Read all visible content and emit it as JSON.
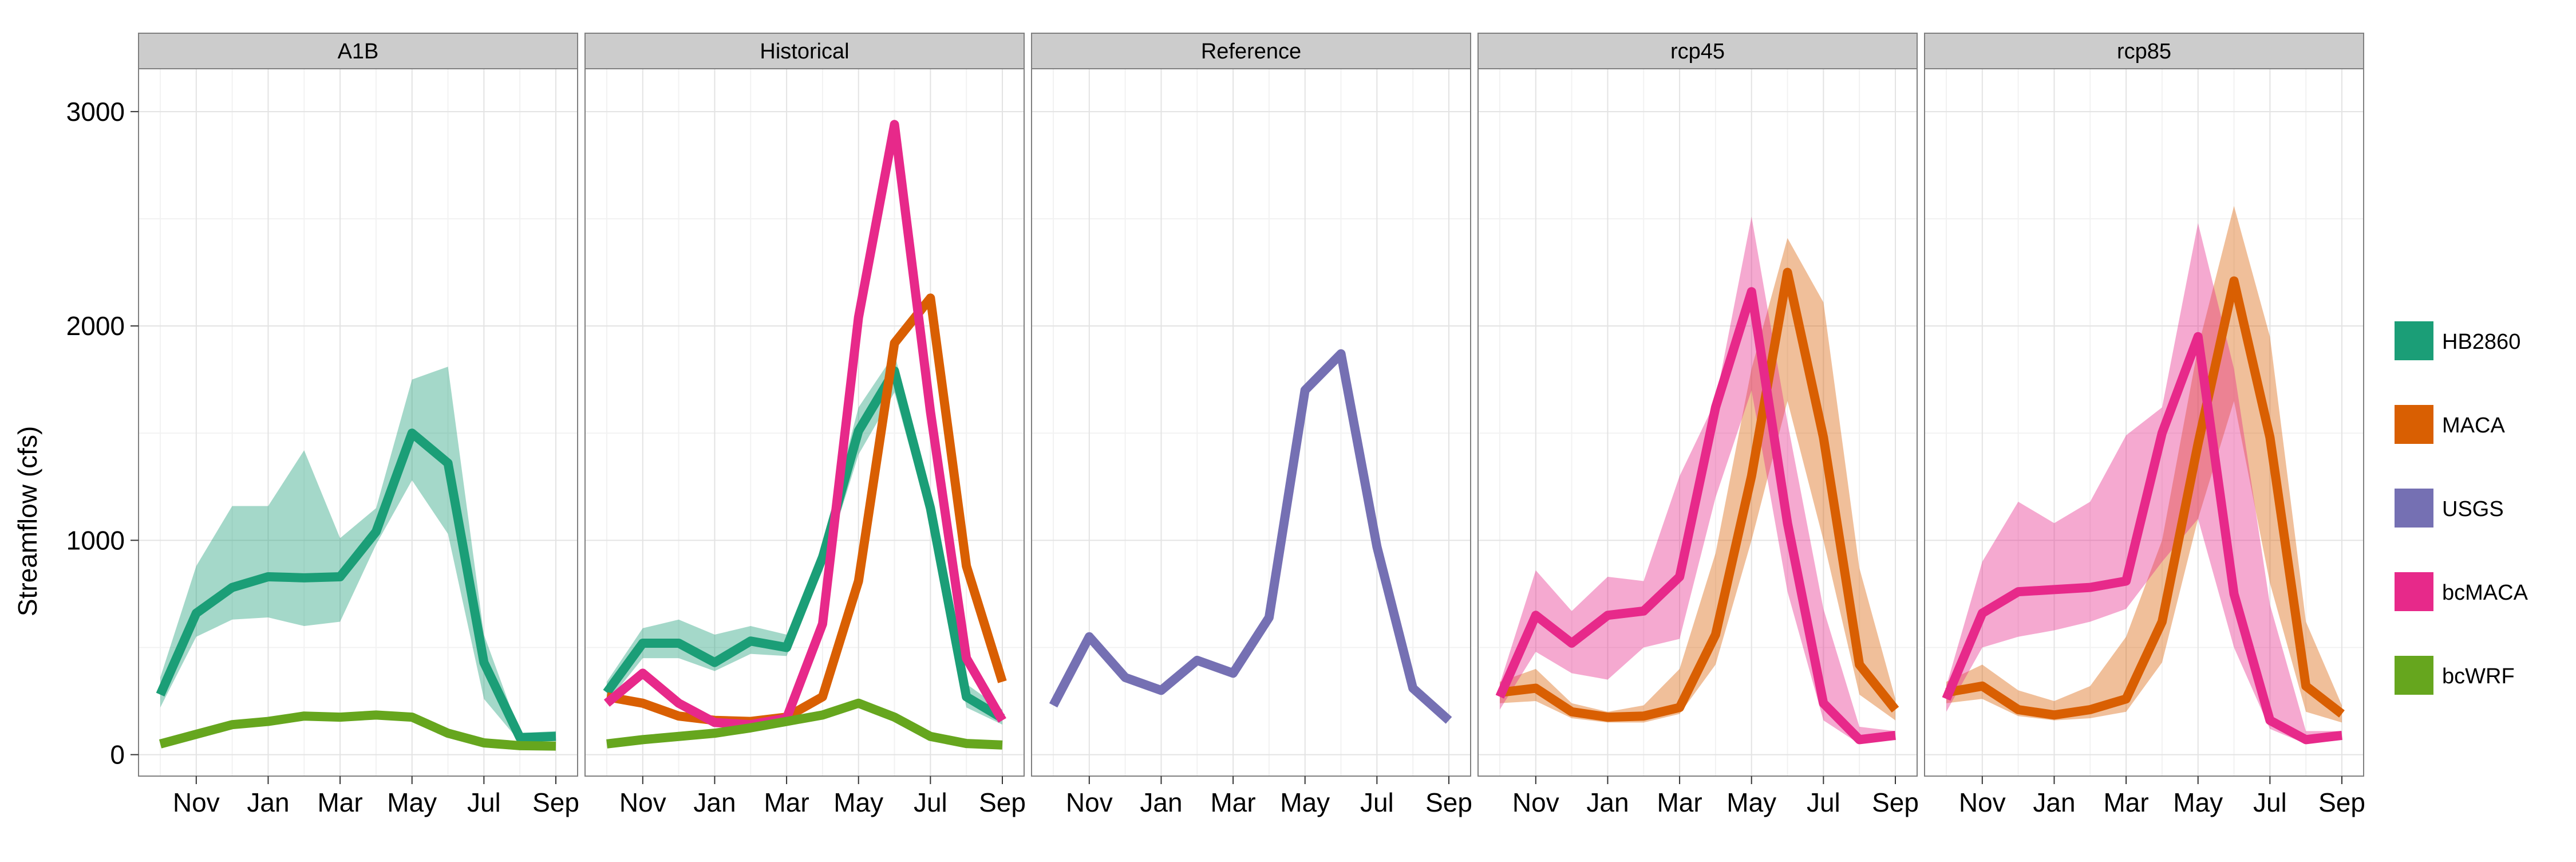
{
  "chart_data": {
    "type": "line",
    "ylabel": "Streamflow (cfs)",
    "xlabel": "",
    "ylim": [
      -100,
      3200
    ],
    "y_ticks": [
      0,
      1000,
      2000,
      3000
    ],
    "x_tick_labels": [
      "Nov",
      "Jan",
      "Mar",
      "May",
      "Jul",
      "Sep"
    ],
    "x_tick_months": [
      2,
      4,
      6,
      8,
      10,
      12
    ],
    "x_months": [
      1,
      2,
      3,
      4,
      5,
      6,
      7,
      8,
      9,
      10,
      11,
      12
    ],
    "legend_position": "right",
    "legend": [
      {
        "name": "HB2860",
        "color": "#1b9e77"
      },
      {
        "name": "MACA",
        "color": "#d95f02"
      },
      {
        "name": "USGS",
        "color": "#7570b3"
      },
      {
        "name": "bcMACA",
        "color": "#e7298a"
      },
      {
        "name": "bcWRF",
        "color": "#66a61e"
      }
    ],
    "panels": [
      {
        "title": "A1B",
        "series": [
          {
            "name": "HB2860",
            "color": "#1b9e77",
            "values": [
              280,
              660,
              780,
              830,
              825,
              830,
              1040,
              1500,
              1360,
              430,
              80,
              85
            ],
            "lower": [
              220,
              550,
              630,
              640,
              600,
              620,
              980,
              1280,
              1030,
              260,
              60,
              65
            ],
            "upper": [
              360,
              880,
              1160,
              1160,
              1420,
              1010,
              1150,
              1750,
              1810,
              560,
              100,
              110
            ]
          },
          {
            "name": "bcWRF",
            "color": "#66a61e",
            "values": [
              50,
              95,
              140,
              155,
              180,
              175,
              185,
              175,
              100,
              55,
              42,
              40
            ]
          }
        ]
      },
      {
        "title": "Historical",
        "series": [
          {
            "name": "HB2860",
            "color": "#1b9e77",
            "values": [
              290,
              520,
              520,
              430,
              530,
              500,
              920,
              1510,
              1790,
              1150,
              270,
              170
            ],
            "lower": [
              240,
              450,
              450,
              390,
              470,
              460,
              860,
              1400,
              1690,
              1080,
              220,
              140
            ],
            "upper": [
              340,
              590,
              630,
              560,
              600,
              560,
              980,
              1620,
              1870,
              1230,
              330,
              210
            ]
          },
          {
            "name": "MACA",
            "color": "#d95f02",
            "values": [
              270,
              240,
              180,
              160,
              155,
              175,
              270,
              810,
              1920,
              2130,
              880,
              340
            ]
          },
          {
            "name": "bcMACA",
            "color": "#e7298a",
            "values": [
              240,
              380,
              240,
              150,
              140,
              170,
              610,
              2040,
              2940,
              1600,
              450,
              160
            ]
          },
          {
            "name": "bcWRF",
            "color": "#66a61e",
            "values": [
              50,
              70,
              85,
              100,
              125,
              155,
              185,
              240,
              175,
              85,
              52,
              45
            ]
          }
        ]
      },
      {
        "title": "Reference",
        "series": [
          {
            "name": "USGS",
            "color": "#7570b3",
            "values": [
              230,
              550,
              360,
              300,
              440,
              380,
              640,
              1700,
              1870,
              970,
              310,
              160
            ]
          }
        ]
      },
      {
        "title": "rcp45",
        "series": [
          {
            "name": "MACA",
            "color": "#d95f02",
            "values": [
              290,
              310,
              200,
              175,
              180,
              220,
              560,
              1300,
              2250,
              1480,
              420,
              210
            ],
            "lower": [
              240,
              250,
              170,
              150,
              150,
              190,
              420,
              1000,
              1650,
              1000,
              280,
              160
            ],
            "upper": [
              340,
              400,
              240,
              200,
              230,
              400,
              940,
              1800,
              2410,
              2110,
              870,
              260
            ]
          },
          {
            "name": "bcMACA",
            "color": "#e7298a",
            "values": [
              270,
              650,
              520,
              650,
              670,
              830,
              1620,
              2160,
              1080,
              240,
              70,
              90
            ],
            "lower": [
              210,
              480,
              380,
              350,
              500,
              540,
              1200,
              1700,
              760,
              160,
              50,
              70
            ],
            "upper": [
              330,
              860,
              670,
              830,
              810,
              1300,
              1650,
              2510,
              1550,
              680,
              130,
              110
            ]
          }
        ]
      },
      {
        "title": "rcp85",
        "series": [
          {
            "name": "MACA",
            "color": "#d95f02",
            "values": [
              290,
              320,
              210,
              185,
              210,
              260,
              620,
              1450,
              2210,
              1480,
              320,
              190
            ],
            "lower": [
              240,
              260,
              180,
              160,
              170,
              200,
              430,
              1100,
              1650,
              800,
              200,
              150
            ],
            "upper": [
              340,
              420,
              300,
              250,
              320,
              550,
              1000,
              1900,
              2560,
              1950,
              620,
              230
            ]
          },
          {
            "name": "bcMACA",
            "color": "#e7298a",
            "values": [
              260,
              660,
              760,
              770,
              780,
              810,
              1500,
              1950,
              750,
              160,
              70,
              90
            ],
            "lower": [
              200,
              500,
              550,
              580,
              620,
              680,
              900,
              1100,
              500,
              120,
              50,
              70
            ],
            "upper": [
              320,
              900,
              1180,
              1080,
              1180,
              1490,
              1620,
              2480,
              1800,
              700,
              110,
              110
            ]
          }
        ]
      }
    ]
  }
}
